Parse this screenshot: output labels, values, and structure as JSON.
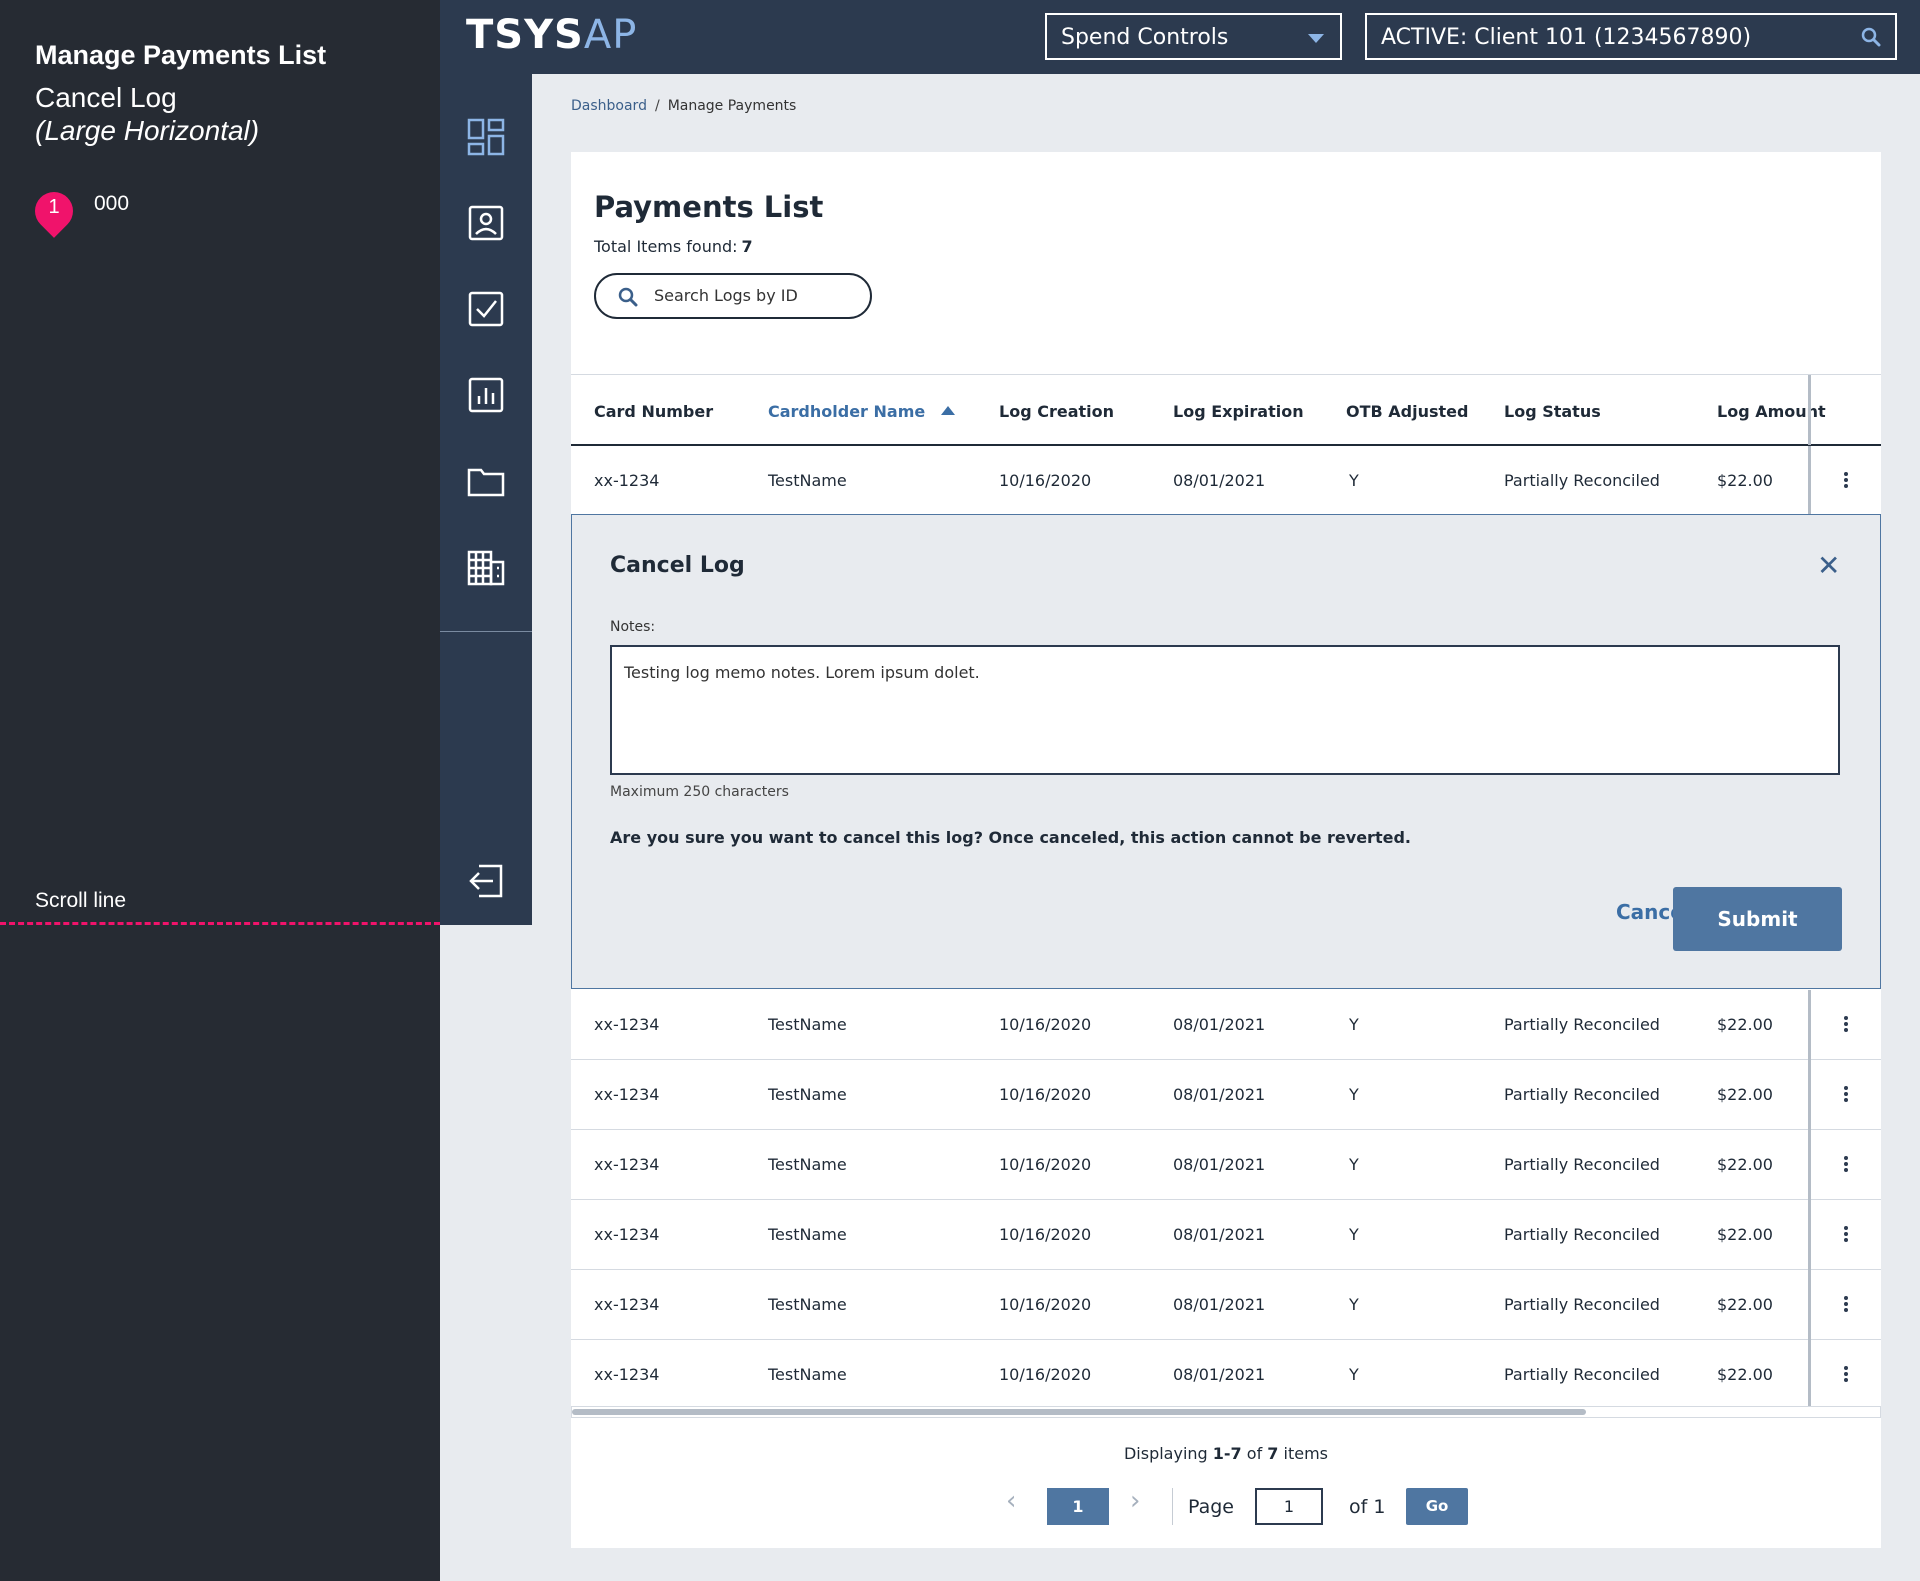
{
  "annotation": {
    "title": "Manage Payments List",
    "subtitle": "Cancel Log",
    "variant": "(Large Horizontal)",
    "marker_number": "1",
    "marker_text": "000",
    "scroll_label": "Scroll line",
    "accent_color": "#f0136b"
  },
  "header": {
    "logo_main": "TSYS",
    "logo_accent": "AP",
    "module_select": "Spend Controls",
    "client": "ACTIVE: Client 101 (1234567890)"
  },
  "sidenav": {
    "items": [
      "dashboard-icon",
      "contact-card-icon",
      "checkbox-icon",
      "report-chart-icon",
      "folder-icon",
      "building-icon"
    ],
    "logout_icon": "logout-icon"
  },
  "breadcrumb": {
    "root": "Dashboard",
    "separator": "/",
    "current": "Manage Payments"
  },
  "page": {
    "title": "Payments List",
    "count_label": "Total Items found:",
    "count_value": "7",
    "search_placeholder": "Search Logs by ID"
  },
  "table": {
    "columns": [
      "Card Number",
      "Cardholder Name",
      "Log Creation",
      "Log Expiration",
      "OTB Adjusted",
      "Log Status",
      "Log Amount"
    ],
    "sorted_column": "Cardholder Name",
    "rows": [
      [
        "xx-1234",
        "TestName",
        "10/16/2020",
        "08/01/2021",
        "Y",
        "Partially Reconciled",
        "$22.00"
      ],
      [
        "xx-1234",
        "TestName",
        "10/16/2020",
        "08/01/2021",
        "Y",
        "Partially Reconciled",
        "$22.00"
      ],
      [
        "xx-1234",
        "TestName",
        "10/16/2020",
        "08/01/2021",
        "Y",
        "Partially Reconciled",
        "$22.00"
      ],
      [
        "xx-1234",
        "TestName",
        "10/16/2020",
        "08/01/2021",
        "Y",
        "Partially Reconciled",
        "$22.00"
      ],
      [
        "xx-1234",
        "TestName",
        "10/16/2020",
        "08/01/2021",
        "Y",
        "Partially Reconciled",
        "$22.00"
      ],
      [
        "xx-1234",
        "TestName",
        "10/16/2020",
        "08/01/2021",
        "Y",
        "Partially Reconciled",
        "$22.00"
      ],
      [
        "xx-1234",
        "TestName",
        "10/16/2020",
        "08/01/2021",
        "Y",
        "Partially Reconciled",
        "$22.00"
      ]
    ]
  },
  "cancel_panel": {
    "title": "Cancel Log",
    "close": "✕",
    "notes_label": "Notes:",
    "notes_value": "Testing log memo notes. Lorem ipsum dolet.",
    "notes_help": "Maximum 250 characters",
    "confirm_text": "Are you sure you want to cancel this log? Once canceled, this action cannot be reverted.",
    "cancel_label": "Cancel",
    "submit_label": "Submit"
  },
  "pagination": {
    "display_prefix": "Displaying",
    "display_range": "1-7",
    "display_of": "of",
    "display_total": "7",
    "display_suffix": "items",
    "prev": "‹",
    "current_page": "1",
    "next": "›",
    "page_label": "Page",
    "page_input": "1",
    "of_label": "of 1",
    "go_label": "Go"
  },
  "colors": {
    "nav_bg": "#2c3a4f",
    "primary": "#4f76a1",
    "link": "#3b6ea5"
  }
}
